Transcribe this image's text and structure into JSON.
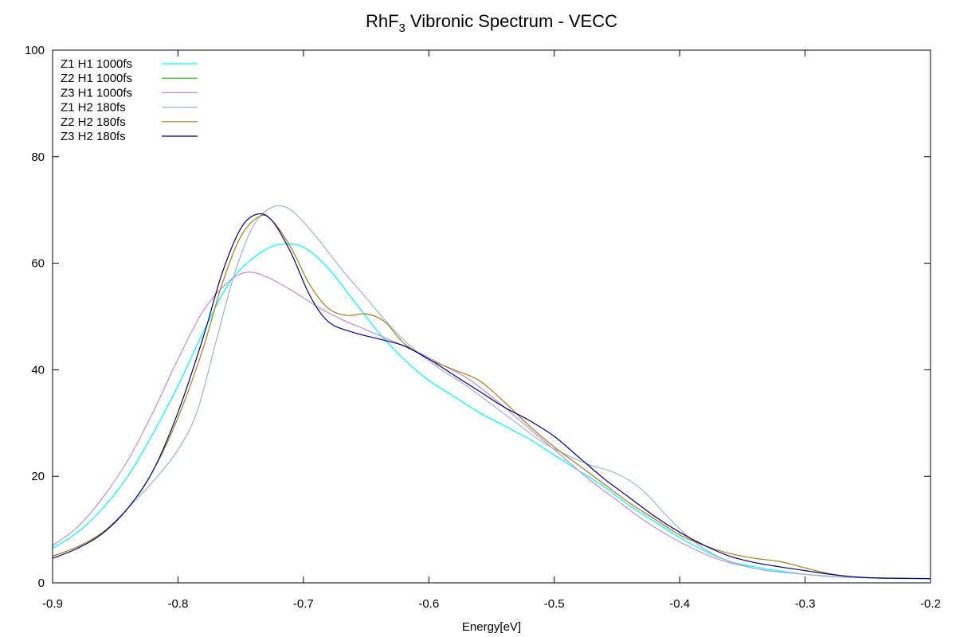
{
  "chart_data": {
    "type": "line",
    "title": {
      "main": "RhF",
      "sub": "3",
      "rest": " Vibronic Spectrum - VECC"
    },
    "xlabel": "Energy[eV]",
    "ylabel": "",
    "xlim": [
      -0.9,
      -0.2
    ],
    "ylim": [
      0,
      100
    ],
    "xticks": [
      -0.9,
      -0.8,
      -0.7,
      -0.6,
      -0.5,
      -0.4,
      -0.3,
      -0.2
    ],
    "xtick_labels": [
      "-0.9",
      "-0.8",
      "-0.7",
      "-0.6",
      "-0.5",
      "-0.4",
      "-0.3",
      "-0.2"
    ],
    "yticks": [
      0,
      20,
      40,
      60,
      80,
      100
    ],
    "ytick_labels": [
      "0",
      "20",
      "40",
      "60",
      "80",
      "100"
    ],
    "grid": false,
    "zero_line": "dotted",
    "legend_position": "top-left",
    "series": [
      {
        "name": "Z1 H1 1000fs",
        "color": "#00ffff",
        "points": [
          [
            -0.9,
            6.5
          ],
          [
            -0.88,
            9.5
          ],
          [
            -0.86,
            14
          ],
          [
            -0.84,
            20
          ],
          [
            -0.82,
            28
          ],
          [
            -0.8,
            37
          ],
          [
            -0.78,
            47
          ],
          [
            -0.76,
            56
          ],
          [
            -0.74,
            61
          ],
          [
            -0.72,
            63.5
          ],
          [
            -0.7,
            63
          ],
          [
            -0.68,
            59
          ],
          [
            -0.66,
            53
          ],
          [
            -0.64,
            47
          ],
          [
            -0.62,
            42
          ],
          [
            -0.6,
            38
          ],
          [
            -0.58,
            35
          ],
          [
            -0.56,
            32
          ],
          [
            -0.54,
            29.5
          ],
          [
            -0.52,
            27
          ],
          [
            -0.5,
            24
          ],
          [
            -0.48,
            21
          ],
          [
            -0.46,
            18
          ],
          [
            -0.44,
            14.5
          ],
          [
            -0.42,
            11.5
          ],
          [
            -0.4,
            8.5
          ],
          [
            -0.38,
            6
          ],
          [
            -0.36,
            4
          ],
          [
            -0.34,
            3
          ],
          [
            -0.32,
            2.2
          ],
          [
            -0.3,
            1.6
          ],
          [
            -0.28,
            1.2
          ],
          [
            -0.26,
            1
          ],
          [
            -0.24,
            0.9
          ],
          [
            -0.22,
            0.8
          ],
          [
            -0.2,
            0.8
          ]
        ]
      },
      {
        "name": "Z2 H1 1000fs",
        "color": "#00cc00",
        "points": []
      },
      {
        "name": "Z3 H1 1000fs",
        "color": "#c090d0",
        "points": [
          [
            -0.9,
            7
          ],
          [
            -0.88,
            10.5
          ],
          [
            -0.86,
            16
          ],
          [
            -0.84,
            23
          ],
          [
            -0.82,
            32
          ],
          [
            -0.8,
            42
          ],
          [
            -0.78,
            51
          ],
          [
            -0.76,
            56.5
          ],
          [
            -0.745,
            58.3
          ],
          [
            -0.73,
            57.5
          ],
          [
            -0.71,
            55
          ],
          [
            -0.69,
            52
          ],
          [
            -0.67,
            49.5
          ],
          [
            -0.65,
            47.5
          ],
          [
            -0.63,
            45.5
          ],
          [
            -0.61,
            43.5
          ],
          [
            -0.59,
            41
          ],
          [
            -0.57,
            38.5
          ],
          [
            -0.55,
            35
          ],
          [
            -0.53,
            31
          ],
          [
            -0.51,
            27
          ],
          [
            -0.49,
            23
          ],
          [
            -0.47,
            19
          ],
          [
            -0.45,
            15.5
          ],
          [
            -0.43,
            12
          ],
          [
            -0.41,
            9
          ],
          [
            -0.39,
            6.5
          ],
          [
            -0.37,
            4.5
          ],
          [
            -0.35,
            3.2
          ],
          [
            -0.33,
            2.3
          ],
          [
            -0.3,
            1.6
          ],
          [
            -0.27,
            1.1
          ],
          [
            -0.24,
            0.9
          ],
          [
            -0.2,
            0.8
          ]
        ]
      },
      {
        "name": "Z1 H2 180fs",
        "color": "#a0b4d0",
        "points": [
          [
            -0.9,
            5
          ],
          [
            -0.88,
            6.8
          ],
          [
            -0.86,
            9.5
          ],
          [
            -0.84,
            14
          ],
          [
            -0.82,
            19
          ],
          [
            -0.8,
            25
          ],
          [
            -0.785,
            32
          ],
          [
            -0.77,
            45
          ],
          [
            -0.755,
            58
          ],
          [
            -0.74,
            67
          ],
          [
            -0.725,
            70.5
          ],
          [
            -0.71,
            70
          ],
          [
            -0.69,
            65
          ],
          [
            -0.67,
            59
          ],
          [
            -0.65,
            53.5
          ],
          [
            -0.63,
            48
          ],
          [
            -0.61,
            43.5
          ],
          [
            -0.59,
            40
          ],
          [
            -0.57,
            37
          ],
          [
            -0.55,
            33.5
          ],
          [
            -0.53,
            30
          ],
          [
            -0.51,
            26.5
          ],
          [
            -0.49,
            24
          ],
          [
            -0.47,
            22
          ],
          [
            -0.45,
            20.5
          ],
          [
            -0.43,
            17.5
          ],
          [
            -0.41,
            12.5
          ],
          [
            -0.39,
            8
          ],
          [
            -0.37,
            5
          ],
          [
            -0.35,
            3.3
          ],
          [
            -0.33,
            2.3
          ],
          [
            -0.3,
            1.6
          ],
          [
            -0.27,
            1.1
          ],
          [
            -0.24,
            0.9
          ],
          [
            -0.2,
            0.8
          ]
        ]
      },
      {
        "name": "Z2 H2 180fs",
        "color": "#a08020",
        "points": [
          [
            -0.9,
            5
          ],
          [
            -0.88,
            6.8
          ],
          [
            -0.86,
            9.5
          ],
          [
            -0.84,
            14
          ],
          [
            -0.82,
            21
          ],
          [
            -0.8,
            31
          ],
          [
            -0.78,
            44
          ],
          [
            -0.765,
            56
          ],
          [
            -0.75,
            65
          ],
          [
            -0.735,
            68.8
          ],
          [
            -0.725,
            68
          ],
          [
            -0.71,
            63
          ],
          [
            -0.695,
            56
          ],
          [
            -0.68,
            51.5
          ],
          [
            -0.665,
            50.2
          ],
          [
            -0.65,
            50.5
          ],
          [
            -0.635,
            49
          ],
          [
            -0.62,
            45
          ],
          [
            -0.6,
            42
          ],
          [
            -0.58,
            40
          ],
          [
            -0.56,
            38
          ],
          [
            -0.54,
            34
          ],
          [
            -0.52,
            29.5
          ],
          [
            -0.5,
            25.5
          ],
          [
            -0.48,
            22
          ],
          [
            -0.46,
            18.5
          ],
          [
            -0.44,
            15
          ],
          [
            -0.42,
            12
          ],
          [
            -0.4,
            9
          ],
          [
            -0.38,
            7
          ],
          [
            -0.36,
            5.5
          ],
          [
            -0.34,
            4.6
          ],
          [
            -0.32,
            4
          ],
          [
            -0.3,
            2.8
          ],
          [
            -0.28,
            1.7
          ],
          [
            -0.26,
            1.1
          ],
          [
            -0.24,
            0.9
          ],
          [
            -0.2,
            0.8
          ]
        ]
      },
      {
        "name": "Z3 H2 180fs",
        "color": "#000080",
        "points": [
          [
            -0.9,
            4.6
          ],
          [
            -0.88,
            6.5
          ],
          [
            -0.86,
            9.3
          ],
          [
            -0.84,
            14
          ],
          [
            -0.82,
            21
          ],
          [
            -0.8,
            32
          ],
          [
            -0.78,
            46
          ],
          [
            -0.765,
            58
          ],
          [
            -0.75,
            66.5
          ],
          [
            -0.737,
            69.2
          ],
          [
            -0.725,
            68
          ],
          [
            -0.71,
            62
          ],
          [
            -0.695,
            54
          ],
          [
            -0.68,
            49
          ],
          [
            -0.66,
            47
          ],
          [
            -0.64,
            45.8
          ],
          [
            -0.62,
            44.5
          ],
          [
            -0.6,
            42
          ],
          [
            -0.58,
            39
          ],
          [
            -0.56,
            36
          ],
          [
            -0.54,
            33
          ],
          [
            -0.52,
            30.5
          ],
          [
            -0.5,
            27.5
          ],
          [
            -0.48,
            23.5
          ],
          [
            -0.46,
            19.5
          ],
          [
            -0.44,
            16
          ],
          [
            -0.42,
            12.5
          ],
          [
            -0.4,
            9.5
          ],
          [
            -0.38,
            7
          ],
          [
            -0.36,
            5
          ],
          [
            -0.34,
            3.8
          ],
          [
            -0.32,
            3
          ],
          [
            -0.3,
            2.3
          ],
          [
            -0.28,
            1.6
          ],
          [
            -0.26,
            1.1
          ],
          [
            -0.24,
            0.9
          ],
          [
            -0.2,
            0.8
          ]
        ]
      }
    ]
  }
}
